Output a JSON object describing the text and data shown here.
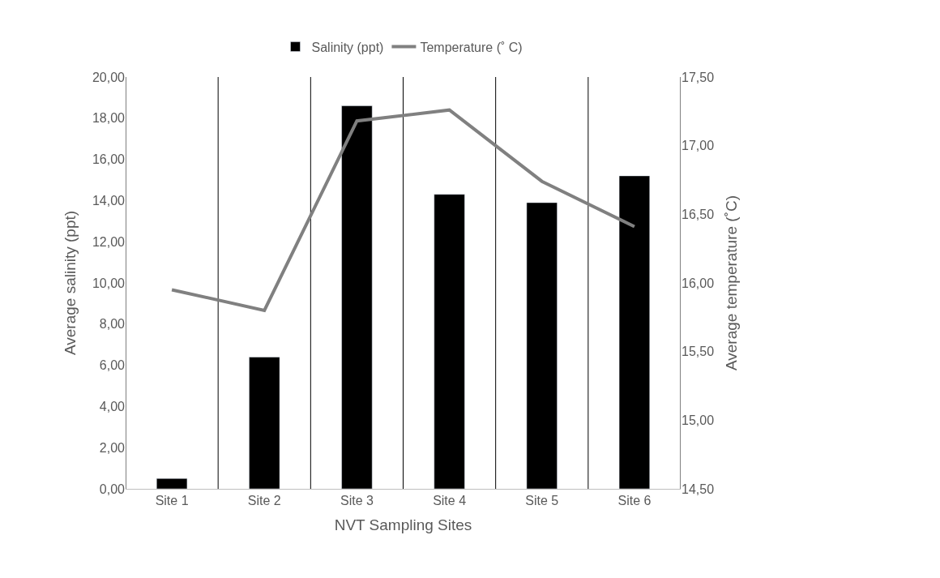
{
  "chart_data": {
    "type": "bar",
    "xlabel": "NVT Sampling Sites",
    "ylabel": "Average salinity (ppt)",
    "y2label": "Average temperature (˚C)",
    "categories": [
      "Site 1",
      "Site 2",
      "Site 3",
      "Site 4",
      "Site 5",
      "Site 6"
    ],
    "series": [
      {
        "name": "Salinity (ppt)",
        "color": "#000000",
        "values": [
          0.5,
          6.4,
          18.6,
          14.3,
          13.9,
          15.2
        ]
      },
      {
        "name": "Temperature (˚ C)",
        "type": "line",
        "axis": "y2",
        "color": "#808080",
        "values": [
          15.95,
          15.8,
          17.18,
          17.26,
          16.74,
          16.41
        ]
      }
    ],
    "ylim": [
      0,
      20
    ],
    "yticks": [
      {
        "value": 0,
        "label": "0,00"
      },
      {
        "value": 2,
        "label": "2,00"
      },
      {
        "value": 4,
        "label": "4,00"
      },
      {
        "value": 6,
        "label": "6,00"
      },
      {
        "value": 8,
        "label": "8,00"
      },
      {
        "value": 10,
        "label": "10,00"
      },
      {
        "value": 12,
        "label": "12,00"
      },
      {
        "value": 14,
        "label": "14,00"
      },
      {
        "value": 16,
        "label": "16,00"
      },
      {
        "value": 18,
        "label": "18,00"
      },
      {
        "value": 20,
        "label": "20,00"
      }
    ],
    "y2lim": [
      14.5,
      17.5
    ],
    "y2ticks": [
      {
        "value": 14.5,
        "label": "14,50"
      },
      {
        "value": 15,
        "label": "15,00"
      },
      {
        "value": 15.5,
        "label": "15,50"
      },
      {
        "value": 16,
        "label": "16,00"
      },
      {
        "value": 16.5,
        "label": "16,50"
      },
      {
        "value": 17,
        "label": "17,00"
      },
      {
        "value": 17.5,
        "label": "17,50"
      }
    ],
    "grid": "x",
    "legend": "top",
    "marker": "none",
    "line_style": "solid"
  }
}
